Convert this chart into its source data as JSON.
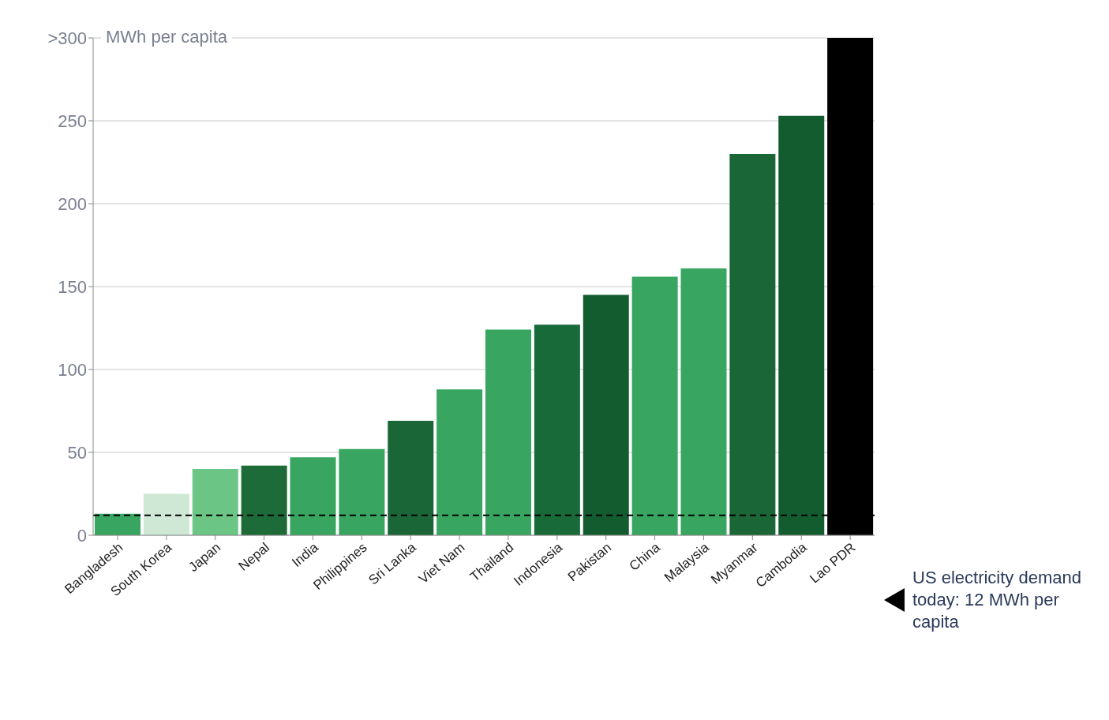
{
  "chart_data": {
    "type": "bar",
    "ylabel": "MWh per capita",
    "categories": [
      "Bangladesh",
      "South Korea",
      "Japan",
      "Nepal",
      "India",
      "Philippines",
      "Sri Lanka",
      "Viet Nam",
      "Thailand",
      "Indonesia",
      "Pakistan",
      "China",
      "Malaysia",
      "Myanmar",
      "Cambodia",
      "Lao PDR"
    ],
    "values": [
      13,
      25,
      40,
      42,
      47,
      52,
      69,
      88,
      124,
      127,
      145,
      156,
      161,
      230,
      253,
      300
    ],
    "colors": [
      "#38a660",
      "#cfe8d5",
      "#6bc585",
      "#1e6b3a",
      "#38a660",
      "#38a660",
      "#1a6636",
      "#38a660",
      "#38a660",
      "#186a38",
      "#125c30",
      "#38a660",
      "#38a660",
      "#1a6636",
      "#125c30",
      "#000000"
    ],
    "ylim": [
      0,
      300
    ],
    "yticks": [
      0,
      50,
      100,
      150,
      200,
      250,
      {
        "value": 300,
        "label": ">300"
      }
    ],
    "grid": "y",
    "ref_lines": [
      {
        "axis": "y",
        "value": 12,
        "label": "US electricity demand today: 12 MWh per capita",
        "color": "#000000",
        "line_style": "dashed"
      }
    ]
  }
}
